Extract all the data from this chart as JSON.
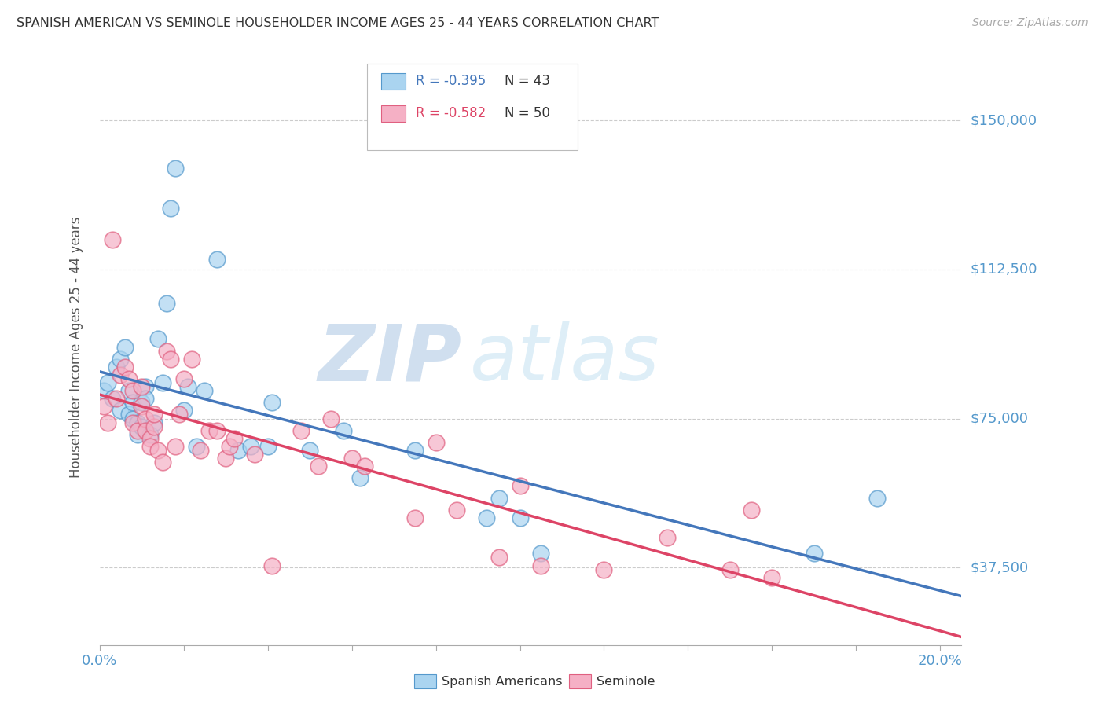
{
  "title": "SPANISH AMERICAN VS SEMINOLE HOUSEHOLDER INCOME AGES 25 - 44 YEARS CORRELATION CHART",
  "source": "Source: ZipAtlas.com",
  "ylabel": "Householder Income Ages 25 - 44 years",
  "xlim": [
    0.0,
    0.205
  ],
  "ylim": [
    18000,
    168000
  ],
  "xticks": [
    0.0,
    0.02,
    0.04,
    0.06,
    0.08,
    0.1,
    0.12,
    0.14,
    0.16,
    0.18,
    0.2
  ],
  "ytick_values": [
    37500,
    75000,
    112500,
    150000
  ],
  "ytick_labels": [
    "$37,500",
    "$75,000",
    "$112,500",
    "$150,000"
  ],
  "blue_face_color": "#aad4f0",
  "blue_edge_color": "#5599cc",
  "pink_face_color": "#f5b0c5",
  "pink_edge_color": "#e06080",
  "blue_line_color": "#4477bb",
  "pink_line_color": "#dd4466",
  "legend_r_blue": "R = -0.395",
  "legend_n_blue": "N = 43",
  "legend_r_pink": "R = -0.582",
  "legend_n_pink": "N = 50",
  "label_blue": "Spanish Americans",
  "label_pink": "Seminole",
  "watermark_zip": "ZIP",
  "watermark_atlas": "atlas",
  "blue_scatter_x": [
    0.001,
    0.002,
    0.003,
    0.004,
    0.005,
    0.005,
    0.006,
    0.007,
    0.007,
    0.008,
    0.008,
    0.009,
    0.009,
    0.01,
    0.01,
    0.011,
    0.011,
    0.012,
    0.013,
    0.014,
    0.015,
    0.016,
    0.017,
    0.018,
    0.02,
    0.021,
    0.023,
    0.025,
    0.028,
    0.033,
    0.036,
    0.04,
    0.041,
    0.05,
    0.058,
    0.062,
    0.075,
    0.092,
    0.095,
    0.1,
    0.105,
    0.17,
    0.185
  ],
  "blue_scatter_y": [
    82000,
    84000,
    80000,
    88000,
    77000,
    90000,
    93000,
    76000,
    82000,
    75000,
    79000,
    74000,
    71000,
    79000,
    73000,
    83000,
    80000,
    71000,
    74000,
    95000,
    84000,
    104000,
    128000,
    138000,
    77000,
    83000,
    68000,
    82000,
    115000,
    67000,
    68000,
    68000,
    79000,
    67000,
    72000,
    60000,
    67000,
    50000,
    55000,
    50000,
    41000,
    41000,
    55000
  ],
  "pink_scatter_x": [
    0.001,
    0.002,
    0.003,
    0.004,
    0.005,
    0.006,
    0.007,
    0.008,
    0.008,
    0.009,
    0.01,
    0.01,
    0.011,
    0.011,
    0.012,
    0.012,
    0.013,
    0.013,
    0.014,
    0.015,
    0.016,
    0.017,
    0.018,
    0.019,
    0.02,
    0.022,
    0.024,
    0.026,
    0.028,
    0.03,
    0.031,
    0.032,
    0.037,
    0.041,
    0.048,
    0.052,
    0.055,
    0.06,
    0.063,
    0.075,
    0.08,
    0.085,
    0.095,
    0.1,
    0.105,
    0.12,
    0.135,
    0.15,
    0.155,
    0.16
  ],
  "pink_scatter_y": [
    78000,
    74000,
    120000,
    80000,
    86000,
    88000,
    85000,
    82000,
    74000,
    72000,
    83000,
    78000,
    75000,
    72000,
    70000,
    68000,
    73000,
    76000,
    67000,
    64000,
    92000,
    90000,
    68000,
    76000,
    85000,
    90000,
    67000,
    72000,
    72000,
    65000,
    68000,
    70000,
    66000,
    38000,
    72000,
    63000,
    75000,
    65000,
    63000,
    50000,
    69000,
    52000,
    40000,
    58000,
    38000,
    37000,
    45000,
    37000,
    52000,
    35000
  ]
}
